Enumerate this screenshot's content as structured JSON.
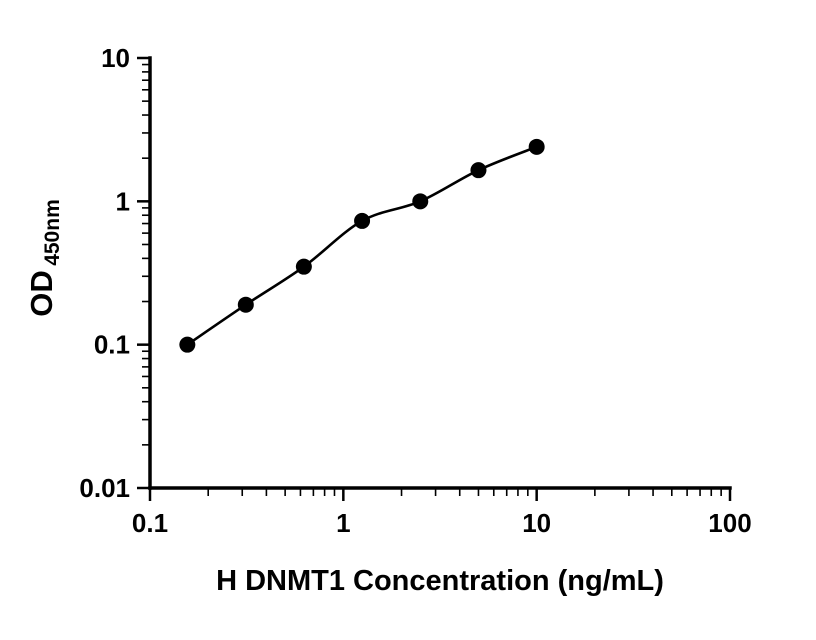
{
  "chart_data": {
    "type": "scatter",
    "title": "",
    "xlabel": "H DNMT1 Concentration (ng/mL)",
    "ylabel_main": "OD",
    "ylabel_sub": "450nm",
    "x_scale": "log",
    "y_scale": "log",
    "xlim": [
      0.1,
      100
    ],
    "ylim": [
      0.01,
      10
    ],
    "x_ticks": [
      0.1,
      1,
      10,
      100
    ],
    "x_tick_labels": [
      "0.1",
      "1",
      "10",
      "100"
    ],
    "y_ticks": [
      0.01,
      0.1,
      1,
      10
    ],
    "y_tick_labels": [
      "0.01",
      "0.1",
      "1",
      "10"
    ],
    "grid": false,
    "legend": "none",
    "curve": "smooth",
    "series": [
      {
        "name": "standard-curve",
        "marker": "circle",
        "color": "#000000",
        "x": [
          0.156,
          0.313,
          0.625,
          1.25,
          2.5,
          5,
          10
        ],
        "y": [
          0.1,
          0.19,
          0.35,
          0.73,
          1.0,
          1.65,
          2.4
        ]
      }
    ]
  },
  "colors": {
    "background": "#ffffff",
    "axis": "#000000",
    "marker": "#000000",
    "line": "#000000"
  }
}
